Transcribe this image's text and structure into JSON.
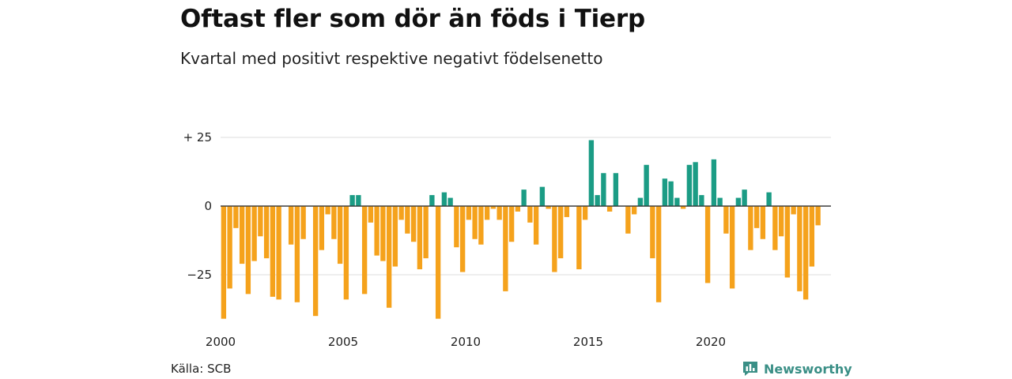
{
  "header": {
    "title": "Oftast fler som dör än föds i Tierp",
    "subtitle": "Kvartal med positivt respektive negativt födelsenetto"
  },
  "footer": {
    "source": "Källa: SCB",
    "brand": "Newsworthy",
    "brand_icon": "bar-chart-speech-bubble-icon",
    "brand_color": "#3a8f86"
  },
  "chart_data": {
    "type": "bar",
    "xlabel": "",
    "ylabel": "",
    "x_start_year": 2000,
    "periods_per_year": 4,
    "xticks": [
      "2000",
      "2005",
      "2010",
      "2015",
      "2020"
    ],
    "yticks": [
      {
        "value": 25,
        "label": "+ 25"
      },
      {
        "value": 0,
        "label": "0"
      },
      {
        "value": -25,
        "label": "−25"
      }
    ],
    "ylim": [
      -42,
      26
    ],
    "grid": true,
    "colors": {
      "positive": "#1b9c85",
      "negative": "#f5a21c"
    },
    "values": [
      -41,
      -30,
      -8,
      -21,
      -32,
      -20,
      -11,
      -19,
      -33,
      -34,
      0,
      -14,
      -35,
      -12,
      0,
      -40,
      -16,
      -3,
      -12,
      -21,
      -34,
      4,
      4,
      -32,
      -6,
      -18,
      -20,
      -37,
      -22,
      -5,
      -10,
      -13,
      -23,
      -19,
      4,
      -41,
      5,
      3,
      -15,
      -24,
      -5,
      -12,
      -14,
      -5,
      -1,
      -5,
      -31,
      -13,
      -2,
      6,
      -6,
      -14,
      7,
      -1,
      -24,
      -19,
      -4,
      0,
      -23,
      -5,
      24,
      4,
      12,
      -2,
      12,
      0,
      -10,
      -3,
      3,
      15,
      -19,
      -35,
      10,
      9,
      3,
      -1,
      15,
      16,
      4,
      -28,
      17,
      3,
      -10,
      -30,
      3,
      6,
      -16,
      -8,
      -12,
      5,
      -16,
      -11,
      -26,
      -3,
      -31,
      -34,
      -22,
      -7
    ]
  }
}
